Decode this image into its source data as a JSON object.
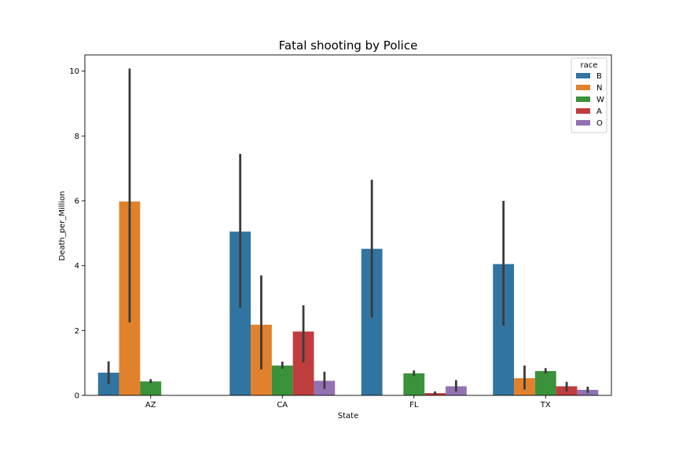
{
  "chart_data": {
    "type": "bar",
    "title": "Fatal shooting by Police",
    "xlabel": "State",
    "ylabel": "Death_per_Million",
    "categories": [
      "AZ",
      "CA",
      "FL",
      "TX"
    ],
    "ylim": [
      0,
      10.5
    ],
    "yticks": [
      0,
      2,
      4,
      6,
      8,
      10
    ],
    "grid": false,
    "legend": {
      "title": "race",
      "placement": "top-right"
    },
    "series": [
      {
        "name": "B",
        "color": "#3274a1",
        "values": [
          0.7,
          5.05,
          4.52,
          4.05
        ],
        "err_low": [
          0.35,
          2.7,
          2.4,
          2.15
        ],
        "err_high": [
          1.05,
          7.45,
          6.65,
          6.0
        ]
      },
      {
        "name": "N",
        "color": "#e1812c",
        "values": [
          5.98,
          2.18,
          null,
          0.53
        ],
        "err_low": [
          2.25,
          0.8,
          null,
          0.18
        ],
        "err_high": [
          10.08,
          3.7,
          null,
          0.92
        ]
      },
      {
        "name": "W",
        "color": "#3a923a",
        "values": [
          0.43,
          0.92,
          0.68,
          0.75
        ],
        "err_low": [
          0.38,
          0.82,
          0.6,
          0.67
        ],
        "err_high": [
          0.5,
          1.04,
          0.77,
          0.84
        ]
      },
      {
        "name": "A",
        "color": "#c03d3e",
        "values": [
          null,
          1.97,
          0.07,
          0.28
        ],
        "err_low": [
          null,
          1.02,
          0.03,
          0.12
        ],
        "err_high": [
          null,
          2.78,
          0.12,
          0.42
        ]
      },
      {
        "name": "O",
        "color": "#9372b2",
        "values": [
          null,
          0.45,
          0.28,
          0.17
        ],
        "err_low": [
          null,
          0.2,
          0.12,
          0.08
        ],
        "err_high": [
          null,
          0.73,
          0.47,
          0.27
        ]
      }
    ]
  }
}
